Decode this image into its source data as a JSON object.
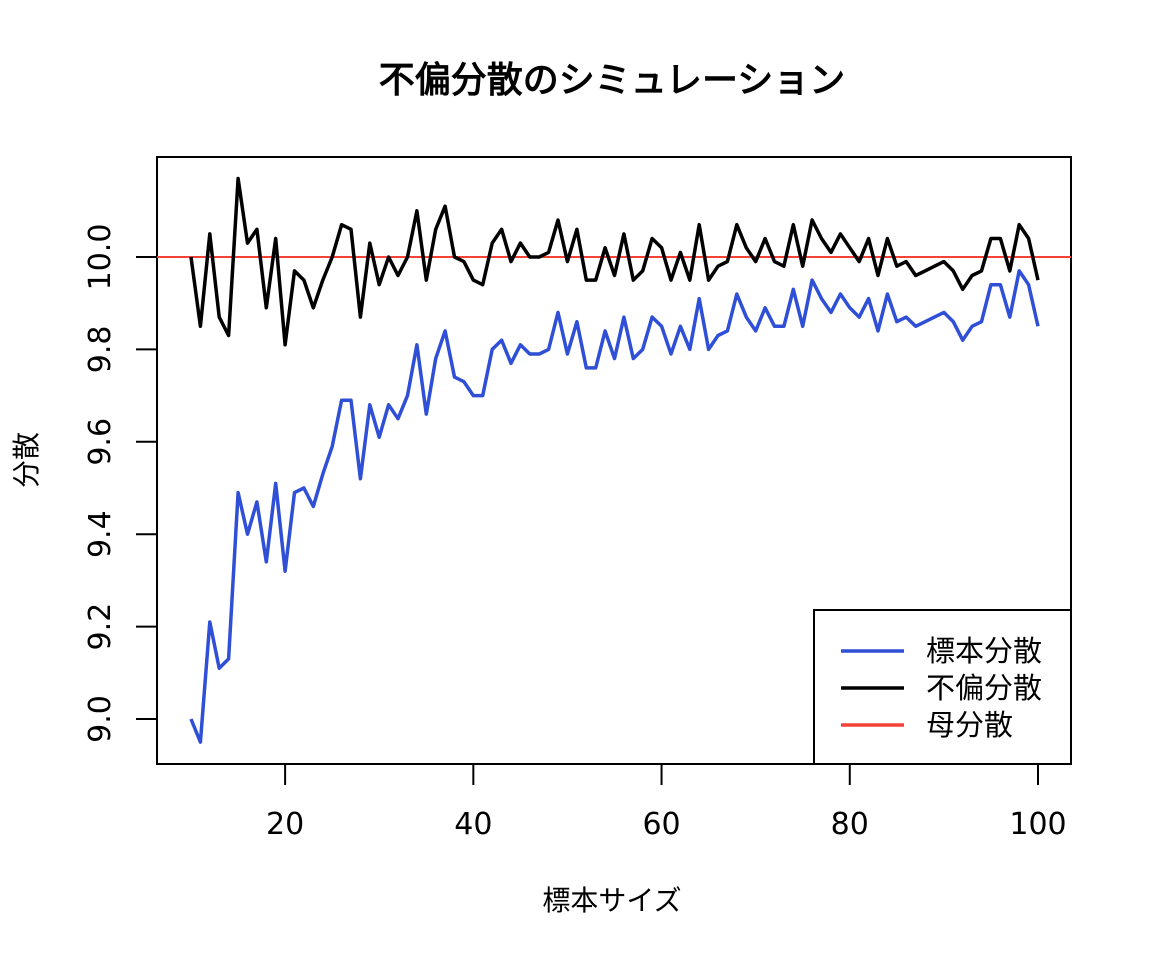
{
  "chart_data": {
    "type": "line",
    "title": "不偏分散のシミュレーション",
    "xlabel": "標本サイズ",
    "ylabel": "分散",
    "xlim": [
      8,
      104
    ],
    "ylim": [
      8.9,
      10.22
    ],
    "x_ticks": [
      20,
      40,
      60,
      80,
      100
    ],
    "y_ticks": [
      9.0,
      9.2,
      9.4,
      9.6,
      9.8,
      10.0
    ],
    "x_tick_labels": [
      "20",
      "40",
      "60",
      "80",
      "100"
    ],
    "y_tick_labels": [
      "9.0",
      "9.2",
      "9.4",
      "9.6",
      "9.8",
      "10.0"
    ],
    "grid": false,
    "legend_position": "bottom-right",
    "x": [
      10,
      11,
      12,
      13,
      14,
      15,
      16,
      17,
      18,
      19,
      20,
      21,
      22,
      23,
      24,
      25,
      26,
      27,
      28,
      29,
      30,
      31,
      32,
      33,
      34,
      35,
      36,
      37,
      38,
      39,
      40,
      41,
      42,
      43,
      44,
      45,
      46,
      47,
      48,
      49,
      50,
      51,
      52,
      53,
      54,
      55,
      56,
      57,
      58,
      59,
      60,
      61,
      62,
      63,
      64,
      65,
      66,
      67,
      68,
      69,
      70,
      71,
      72,
      73,
      74,
      75,
      76,
      77,
      78,
      79,
      80,
      81,
      82,
      83,
      84,
      85,
      86,
      87,
      88,
      89,
      90,
      91,
      92,
      93,
      94,
      95,
      96,
      97,
      98,
      99,
      100
    ],
    "series": [
      {
        "name": "標本分散",
        "color": "#2f4fd6",
        "values": [
          9.0,
          8.95,
          9.21,
          9.11,
          9.13,
          9.49,
          9.4,
          9.47,
          9.34,
          9.51,
          9.32,
          9.49,
          9.5,
          9.46,
          9.53,
          9.59,
          9.69,
          9.69,
          9.52,
          9.68,
          9.61,
          9.68,
          9.65,
          9.7,
          9.81,
          9.66,
          9.78,
          9.84,
          9.74,
          9.73,
          9.7,
          9.7,
          9.8,
          9.82,
          9.77,
          9.81,
          9.79,
          9.79,
          9.8,
          9.88,
          9.79,
          9.86,
          9.76,
          9.76,
          9.84,
          9.78,
          9.87,
          9.78,
          9.8,
          9.87,
          9.85,
          9.79,
          9.85,
          9.8,
          9.91,
          9.8,
          9.83,
          9.84,
          9.92,
          9.87,
          9.84,
          9.89,
          9.85,
          9.85,
          9.93,
          9.85,
          9.95,
          9.91,
          9.88,
          9.92,
          9.89,
          9.87,
          9.91,
          9.84,
          9.92,
          9.86,
          9.87,
          9.85,
          9.86,
          9.87,
          9.88,
          9.86,
          9.82,
          9.85,
          9.86,
          9.94,
          9.94,
          9.87,
          9.97,
          9.94,
          9.85
        ]
      },
      {
        "name": "不偏分散",
        "color": "#000000",
        "values": [
          10.0,
          9.85,
          10.05,
          9.87,
          9.83,
          10.17,
          10.03,
          10.06,
          9.89,
          10.04,
          9.81,
          9.97,
          9.95,
          9.89,
          9.95,
          10.0,
          10.07,
          10.06,
          9.87,
          10.03,
          9.94,
          10.0,
          9.96,
          10.0,
          10.1,
          9.95,
          10.06,
          10.11,
          10.0,
          9.99,
          9.95,
          9.94,
          10.03,
          10.06,
          9.99,
          10.03,
          10.0,
          10.0,
          10.01,
          10.08,
          9.99,
          10.06,
          9.95,
          9.95,
          10.02,
          9.96,
          10.05,
          9.95,
          9.97,
          10.04,
          10.02,
          9.95,
          10.01,
          9.95,
          10.07,
          9.95,
          9.98,
          9.99,
          10.07,
          10.02,
          9.99,
          10.04,
          9.99,
          9.98,
          10.07,
          9.98,
          10.08,
          10.04,
          10.01,
          10.05,
          10.02,
          9.99,
          10.04,
          9.96,
          10.04,
          9.98,
          9.99,
          9.96,
          9.97,
          9.98,
          9.99,
          9.97,
          9.93,
          9.96,
          9.97,
          10.04,
          10.04,
          9.97,
          10.07,
          10.04,
          9.95
        ]
      }
    ],
    "reference_lines": [
      {
        "name": "母分散",
        "color": "#f44336",
        "value": 10.0
      }
    ]
  }
}
